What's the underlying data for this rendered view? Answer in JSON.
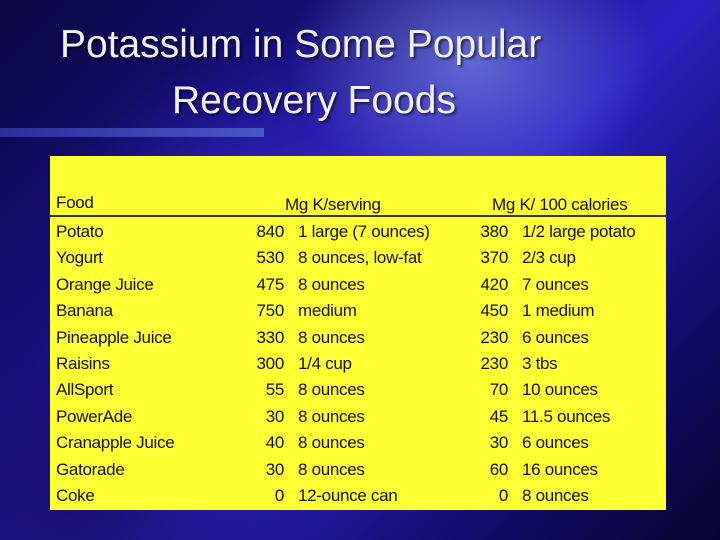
{
  "title": {
    "line1": "Potassium in Some Popular",
    "line2": "Recovery Foods"
  },
  "table": {
    "headers": {
      "food": "Food",
      "mg_serving": "Mg K/serving",
      "mg_100cal": "Mg K/ 100 calories"
    },
    "rows": [
      {
        "food": "Potato",
        "mg_serving": "840",
        "serving": "1 large (7 ounces)",
        "mg_100cal": "380",
        "per100": "1/2 large potato"
      },
      {
        "food": "Yogurt",
        "mg_serving": "530",
        "serving": "8 ounces, low-fat",
        "mg_100cal": "370",
        "per100": "2/3 cup"
      },
      {
        "food": "Orange Juice",
        "mg_serving": "475",
        "serving": "8 ounces",
        "mg_100cal": "420",
        "per100": "7 ounces"
      },
      {
        "food": "Banana",
        "mg_serving": "750",
        "serving": "medium",
        "mg_100cal": "450",
        "per100": "1 medium"
      },
      {
        "food": "Pineapple Juice",
        "mg_serving": "330",
        "serving": "8 ounces",
        "mg_100cal": "230",
        "per100": "6 ounces"
      },
      {
        "food": "Raisins",
        "mg_serving": "300",
        "serving": "1/4 cup",
        "mg_100cal": "230",
        "per100": "3 tbs"
      },
      {
        "food": "AllSport",
        "mg_serving": "55",
        "serving": "8 ounces",
        "mg_100cal": "70",
        "per100": "10 ounces"
      },
      {
        "food": "PowerAde",
        "mg_serving": "30",
        "serving": "8 ounces",
        "mg_100cal": "45",
        "per100": "11.5 ounces"
      },
      {
        "food": "Cranapple Juice",
        "mg_serving": "40",
        "serving": "8 ounces",
        "mg_100cal": "30",
        "per100": "6 ounces"
      },
      {
        "food": "Gatorade",
        "mg_serving": "30",
        "serving": "8 ounces",
        "mg_100cal": "60",
        "per100": "16 ounces"
      },
      {
        "food": "Coke",
        "mg_serving": "0",
        "serving": "12-ounce can",
        "mg_100cal": "0",
        "per100": "8 ounces"
      }
    ]
  }
}
